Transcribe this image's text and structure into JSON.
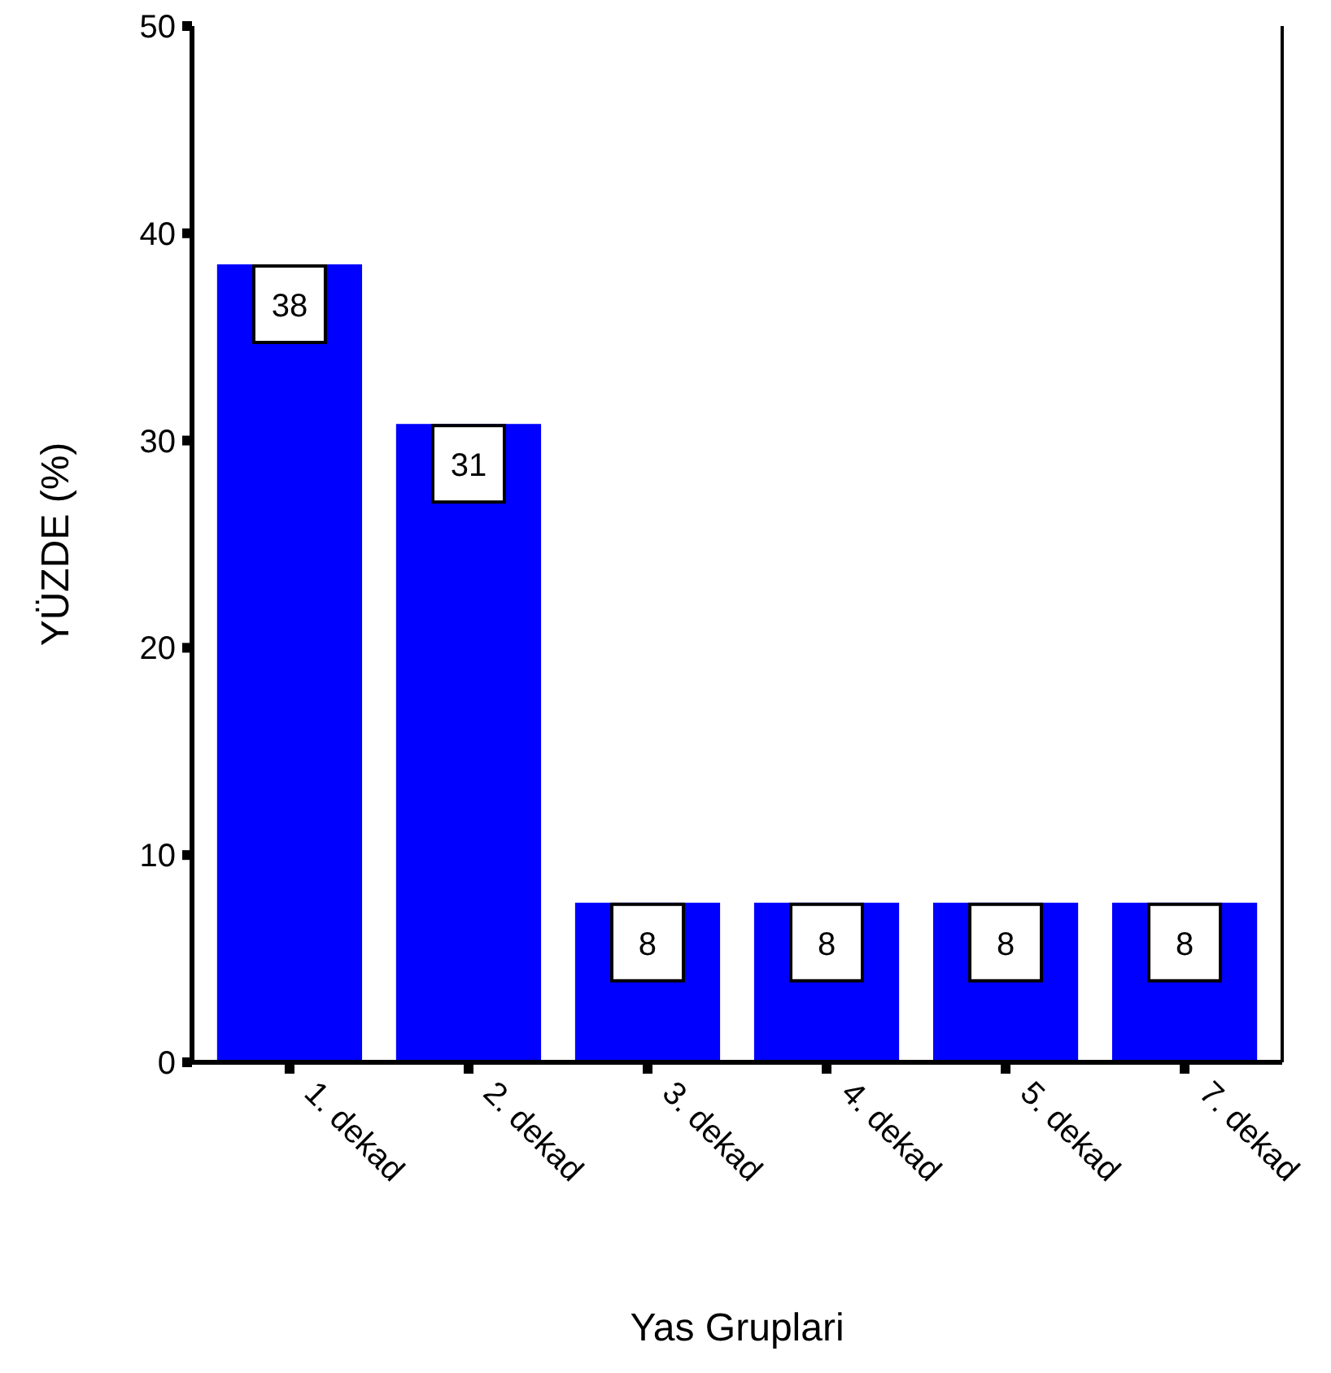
{
  "chart_data": {
    "type": "bar",
    "xlabel": "Yas Gruplari",
    "ylabel": "YÜZDE (%)",
    "categories": [
      "1. dekad",
      "2. dekad",
      "3. dekad",
      "4. dekad",
      "5. dekad",
      "7. dekad"
    ],
    "values": [
      38.5,
      30.8,
      7.7,
      7.7,
      7.7,
      7.7
    ],
    "value_labels": [
      "38",
      "31",
      "8",
      "8",
      "8",
      "8"
    ],
    "color": "#0000ff",
    "ylim": [
      0,
      50
    ],
    "yticks": [
      0,
      10,
      20,
      30,
      40,
      50
    ],
    "grid": false
  }
}
